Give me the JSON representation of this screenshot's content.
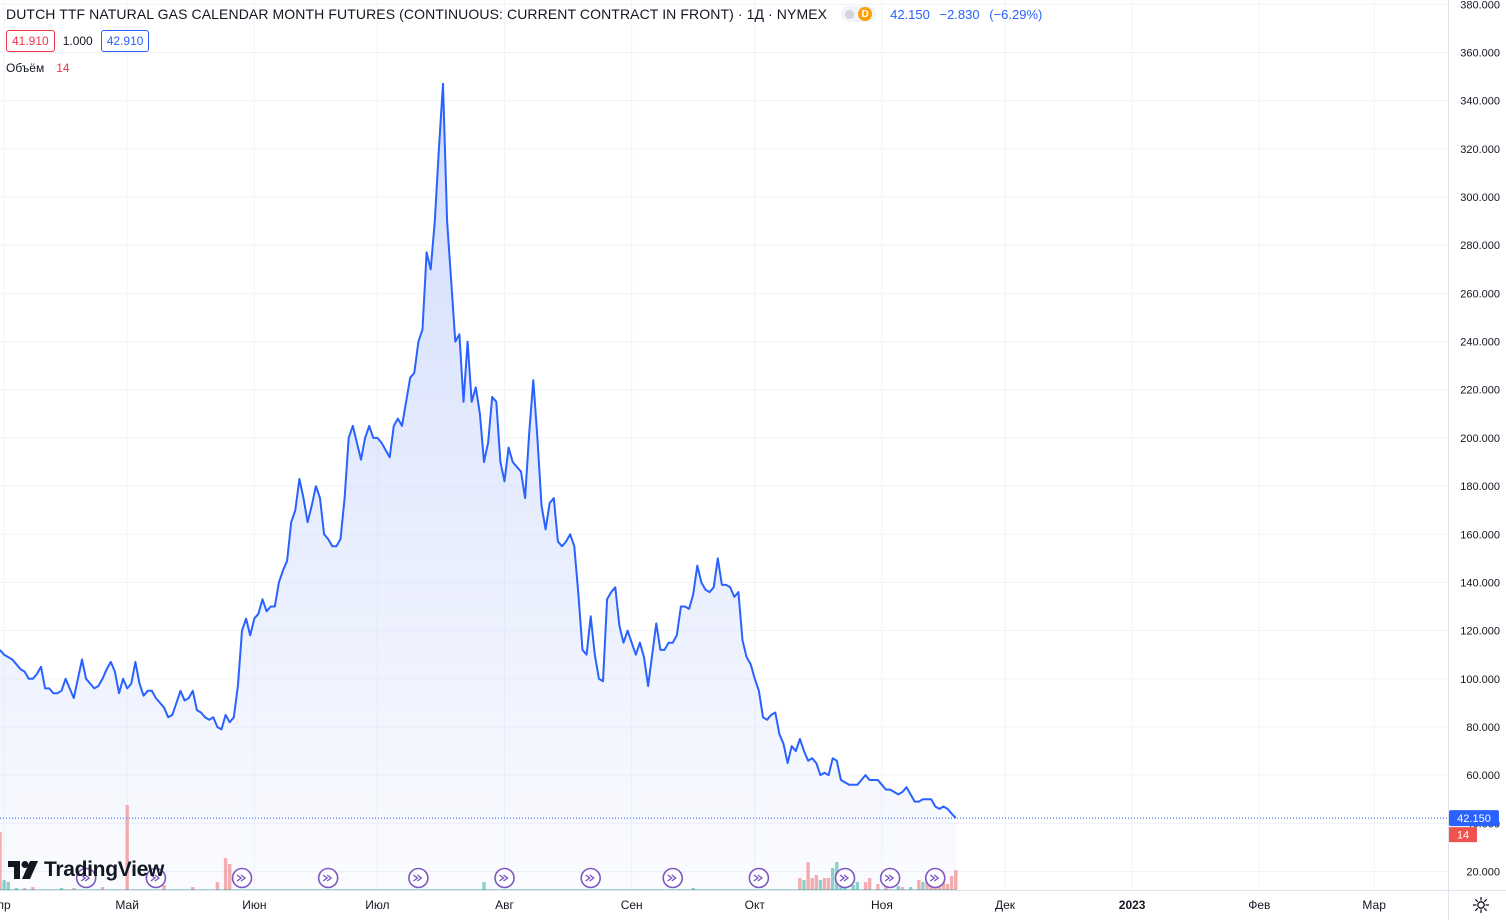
{
  "header": {
    "title": "DUTCH TTF NATURAL GAS CALENDAR MONTH FUTURES (CONTINUOUS: CURRENT CONTRACT IN FRONT) · 1Д · NYMEX",
    "badge_letter": "D",
    "last_price": "42.150",
    "change": "−2.830",
    "change_pct": "(−6.29%)"
  },
  "quote": {
    "sell": "41.910",
    "spread": "1.000",
    "buy": "42.910"
  },
  "volume_legend": {
    "label": "Объём",
    "value": "14"
  },
  "brand": {
    "name": "TradingView"
  },
  "colors": {
    "line": "#2962ff",
    "area_top": "#c9d6fb",
    "volume_up": "#26a69a",
    "volume_down": "#ef5350",
    "axis_text": "#131722",
    "grid": "#f0f3fa",
    "event": "#7e57c2"
  },
  "icons": [
    "settings-gear-icon",
    "tradingview-logo-icon",
    "dividend-event-icon"
  ],
  "chart_data": {
    "type": "area",
    "x_range_days": [
      -7,
      346
    ],
    "ylim": [
      20,
      380
    ],
    "yticks": [
      20,
      40,
      60,
      80,
      100,
      120,
      140,
      160,
      180,
      200,
      220,
      240,
      260,
      280,
      300,
      320,
      340,
      360,
      380
    ],
    "ytick_labels": [
      "20.000",
      "40.000",
      "60.000",
      "80.000",
      "100.000",
      "120.000",
      "140.000",
      "160.000",
      "180.000",
      "200.000",
      "220.000",
      "240.000",
      "260.000",
      "280.000",
      "300.000",
      "320.000",
      "340.000",
      "360.000",
      "380.000"
    ],
    "xticks": [
      {
        "label": "пр",
        "day": -6
      },
      {
        "label": "Май",
        "day": 24
      },
      {
        "label": "Июн",
        "day": 55
      },
      {
        "label": "Июл",
        "day": 85
      },
      {
        "label": "Авг",
        "day": 116
      },
      {
        "label": "Сен",
        "day": 147
      },
      {
        "label": "Окт",
        "day": 177
      },
      {
        "label": "Ноя",
        "day": 208
      },
      {
        "label": "Дек",
        "day": 238
      },
      {
        "label": "2023",
        "day": 269,
        "bold": true
      },
      {
        "label": "Фев",
        "day": 300
      },
      {
        "label": "Мар",
        "day": 328
      }
    ],
    "last_price_label": "42.150",
    "last_price": 42.15,
    "volume_label": "14",
    "grid": true,
    "price_points": [
      [
        -7,
        112
      ],
      [
        -6,
        110
      ],
      [
        -4,
        108
      ],
      [
        -3,
        106
      ],
      [
        -2,
        104
      ],
      [
        -1,
        103
      ],
      [
        0,
        100
      ],
      [
        1,
        100
      ],
      [
        2,
        102
      ],
      [
        3,
        105
      ],
      [
        4,
        96
      ],
      [
        5,
        96
      ],
      [
        6,
        94
      ],
      [
        7,
        94
      ],
      [
        8,
        95
      ],
      [
        9,
        100
      ],
      [
        10,
        96
      ],
      [
        11,
        92
      ],
      [
        12,
        100
      ],
      [
        13,
        108
      ],
      [
        14,
        100
      ],
      [
        15,
        98
      ],
      [
        16,
        96
      ],
      [
        17,
        97
      ],
      [
        18,
        100
      ],
      [
        19,
        104
      ],
      [
        20,
        107
      ],
      [
        21,
        103
      ],
      [
        22,
        94
      ],
      [
        23,
        100
      ],
      [
        24,
        96
      ],
      [
        25,
        98
      ],
      [
        26,
        107
      ],
      [
        27,
        98
      ],
      [
        28,
        93
      ],
      [
        29,
        95
      ],
      [
        30,
        95
      ],
      [
        31,
        92
      ],
      [
        32,
        90
      ],
      [
        33,
        88
      ],
      [
        34,
        84
      ],
      [
        35,
        85
      ],
      [
        36,
        90
      ],
      [
        37,
        95
      ],
      [
        38,
        91
      ],
      [
        39,
        92
      ],
      [
        40,
        95
      ],
      [
        41,
        87
      ],
      [
        42,
        86
      ],
      [
        43,
        84
      ],
      [
        44,
        83
      ],
      [
        45,
        84
      ],
      [
        46,
        80
      ],
      [
        47,
        79
      ],
      [
        48,
        85
      ],
      [
        49,
        82
      ],
      [
        50,
        84
      ],
      [
        51,
        97
      ],
      [
        52,
        120
      ],
      [
        53,
        125
      ],
      [
        54,
        118
      ],
      [
        55,
        125
      ],
      [
        56,
        127
      ],
      [
        57,
        133
      ],
      [
        58,
        128
      ],
      [
        59,
        130
      ],
      [
        60,
        130
      ],
      [
        61,
        140
      ],
      [
        62,
        145
      ],
      [
        63,
        149
      ],
      [
        64,
        165
      ],
      [
        65,
        170
      ],
      [
        66,
        183
      ],
      [
        67,
        175
      ],
      [
        68,
        165
      ],
      [
        69,
        172
      ],
      [
        70,
        180
      ],
      [
        71,
        175
      ],
      [
        72,
        160
      ],
      [
        73,
        158
      ],
      [
        74,
        155
      ],
      [
        75,
        155
      ],
      [
        76,
        158
      ],
      [
        77,
        175
      ],
      [
        78,
        200
      ],
      [
        79,
        205
      ],
      [
        80,
        198
      ],
      [
        81,
        191
      ],
      [
        82,
        200
      ],
      [
        83,
        205
      ],
      [
        84,
        200
      ],
      [
        85,
        200
      ],
      [
        86,
        198
      ],
      [
        87,
        195
      ],
      [
        88,
        192
      ],
      [
        89,
        205
      ],
      [
        90,
        208
      ],
      [
        91,
        205
      ],
      [
        92,
        215
      ],
      [
        93,
        225
      ],
      [
        94,
        227
      ],
      [
        95,
        240
      ],
      [
        96,
        245
      ],
      [
        97,
        277
      ],
      [
        98,
        270
      ],
      [
        99,
        290
      ],
      [
        100,
        320
      ],
      [
        101,
        347
      ],
      [
        102,
        290
      ],
      [
        103,
        265
      ],
      [
        104,
        240
      ],
      [
        105,
        243
      ],
      [
        106,
        215
      ],
      [
        107,
        240
      ],
      [
        108,
        215
      ],
      [
        109,
        221
      ],
      [
        110,
        210
      ],
      [
        111,
        190
      ],
      [
        112,
        198
      ],
      [
        113,
        217
      ],
      [
        114,
        215
      ],
      [
        115,
        190
      ],
      [
        116,
        182
      ],
      [
        117,
        196
      ],
      [
        118,
        190
      ],
      [
        119,
        188
      ],
      [
        120,
        186
      ],
      [
        121,
        175
      ],
      [
        122,
        202
      ],
      [
        123,
        224
      ],
      [
        124,
        200
      ],
      [
        125,
        172
      ],
      [
        126,
        162
      ],
      [
        127,
        173
      ],
      [
        128,
        175
      ],
      [
        129,
        157
      ],
      [
        130,
        155
      ],
      [
        131,
        157
      ],
      [
        132,
        160
      ],
      [
        133,
        155
      ],
      [
        134,
        135
      ],
      [
        135,
        112
      ],
      [
        136,
        110
      ],
      [
        137,
        126
      ],
      [
        138,
        110
      ],
      [
        139,
        100
      ],
      [
        140,
        99
      ],
      [
        141,
        133
      ],
      [
        142,
        136
      ],
      [
        143,
        138
      ],
      [
        144,
        122
      ],
      [
        145,
        115
      ],
      [
        146,
        120
      ],
      [
        147,
        115
      ],
      [
        148,
        110
      ],
      [
        149,
        115
      ],
      [
        150,
        109
      ],
      [
        151,
        97
      ],
      [
        152,
        110
      ],
      [
        153,
        123
      ],
      [
        154,
        112
      ],
      [
        155,
        112
      ],
      [
        156,
        115
      ],
      [
        157,
        115
      ],
      [
        158,
        118
      ],
      [
        159,
        130
      ],
      [
        160,
        130
      ],
      [
        161,
        129
      ],
      [
        162,
        135
      ],
      [
        163,
        147
      ],
      [
        164,
        140
      ],
      [
        165,
        137
      ],
      [
        166,
        136
      ],
      [
        167,
        138
      ],
      [
        168,
        150
      ],
      [
        169,
        139
      ],
      [
        170,
        139
      ],
      [
        171,
        138
      ],
      [
        172,
        134
      ],
      [
        173,
        136
      ],
      [
        174,
        116
      ],
      [
        175,
        109
      ],
      [
        176,
        106
      ],
      [
        177,
        100
      ],
      [
        178,
        95
      ],
      [
        179,
        84
      ],
      [
        180,
        83
      ],
      [
        181,
        85
      ],
      [
        182,
        86
      ],
      [
        183,
        77
      ],
      [
        184,
        73
      ],
      [
        185,
        65
      ],
      [
        186,
        72
      ],
      [
        187,
        70
      ],
      [
        188,
        75
      ],
      [
        189,
        70
      ],
      [
        190,
        66
      ],
      [
        191,
        67
      ],
      [
        192,
        65
      ],
      [
        193,
        60
      ],
      [
        194,
        61
      ],
      [
        195,
        60
      ],
      [
        196,
        67
      ],
      [
        197,
        66
      ],
      [
        198,
        58
      ],
      [
        199,
        57
      ],
      [
        200,
        56
      ],
      [
        201,
        56
      ],
      [
        202,
        56
      ],
      [
        203,
        58
      ],
      [
        204,
        60
      ],
      [
        205,
        58
      ],
      [
        206,
        58
      ],
      [
        207,
        58
      ],
      [
        208,
        56
      ],
      [
        209,
        54
      ],
      [
        210,
        54
      ],
      [
        211,
        53
      ],
      [
        212,
        52
      ],
      [
        213,
        53
      ],
      [
        214,
        55
      ],
      [
        215,
        52
      ],
      [
        216,
        49
      ],
      [
        217,
        49
      ],
      [
        218,
        50
      ],
      [
        219,
        50
      ],
      [
        220,
        50
      ],
      [
        221,
        47
      ],
      [
        222,
        46
      ],
      [
        223,
        47
      ],
      [
        224,
        46
      ],
      [
        225,
        44
      ],
      [
        226,
        42.15
      ]
    ],
    "volume_bars": [
      {
        "day": -7,
        "h": 58,
        "c": "down"
      },
      {
        "day": -6,
        "h": 10,
        "c": "up"
      },
      {
        "day": -5,
        "h": 8,
        "c": "up"
      },
      {
        "day": -3,
        "h": 2,
        "c": "up"
      },
      {
        "day": -1,
        "h": 2,
        "c": "down"
      },
      {
        "day": 1,
        "h": 3,
        "c": "down"
      },
      {
        "day": 8,
        "h": 2,
        "c": "up"
      },
      {
        "day": 11,
        "h": 2,
        "c": "down"
      },
      {
        "day": 18,
        "h": 3,
        "c": "down"
      },
      {
        "day": 24,
        "h": 85,
        "c": "down"
      },
      {
        "day": 33,
        "h": 5,
        "c": "down"
      },
      {
        "day": 40,
        "h": 3,
        "c": "down"
      },
      {
        "day": 46,
        "h": 8,
        "c": "down"
      },
      {
        "day": 48,
        "h": 32,
        "c": "down"
      },
      {
        "day": 49,
        "h": 26,
        "c": "down"
      },
      {
        "day": 111,
        "h": 8,
        "c": "up"
      },
      {
        "day": 162,
        "h": 2,
        "c": "up"
      },
      {
        "day": 188,
        "h": 12,
        "c": "down"
      },
      {
        "day": 189,
        "h": 10,
        "c": "up"
      },
      {
        "day": 190,
        "h": 28,
        "c": "down"
      },
      {
        "day": 191,
        "h": 12,
        "c": "down"
      },
      {
        "day": 192,
        "h": 15,
        "c": "down"
      },
      {
        "day": 193,
        "h": 10,
        "c": "up"
      },
      {
        "day": 194,
        "h": 12,
        "c": "down"
      },
      {
        "day": 195,
        "h": 12,
        "c": "down"
      },
      {
        "day": 196,
        "h": 22,
        "c": "up"
      },
      {
        "day": 197,
        "h": 28,
        "c": "up"
      },
      {
        "day": 198,
        "h": 3,
        "c": "up"
      },
      {
        "day": 199,
        "h": 5,
        "c": "up"
      },
      {
        "day": 201,
        "h": 5,
        "c": "up"
      },
      {
        "day": 202,
        "h": 8,
        "c": "up"
      },
      {
        "day": 204,
        "h": 8,
        "c": "down"
      },
      {
        "day": 205,
        "h": 12,
        "c": "down"
      },
      {
        "day": 207,
        "h": 6,
        "c": "down"
      },
      {
        "day": 209,
        "h": 14,
        "c": "down"
      },
      {
        "day": 212,
        "h": 4,
        "c": "up"
      },
      {
        "day": 213,
        "h": 3,
        "c": "down"
      },
      {
        "day": 215,
        "h": 3,
        "c": "up"
      },
      {
        "day": 217,
        "h": 10,
        "c": "down"
      },
      {
        "day": 218,
        "h": 8,
        "c": "up"
      },
      {
        "day": 219,
        "h": 12,
        "c": "down"
      },
      {
        "day": 220,
        "h": 10,
        "c": "down"
      },
      {
        "day": 221,
        "h": 8,
        "c": "down"
      },
      {
        "day": 222,
        "h": 12,
        "c": "down"
      },
      {
        "day": 223,
        "h": 14,
        "c": "down"
      },
      {
        "day": 224,
        "h": 6,
        "c": "down"
      },
      {
        "day": 225,
        "h": 14,
        "c": "down"
      },
      {
        "day": 226,
        "h": 20,
        "c": "down"
      }
    ],
    "events": [
      14,
      31,
      52,
      73,
      95,
      116,
      137,
      157,
      178,
      199,
      210,
      221
    ]
  }
}
